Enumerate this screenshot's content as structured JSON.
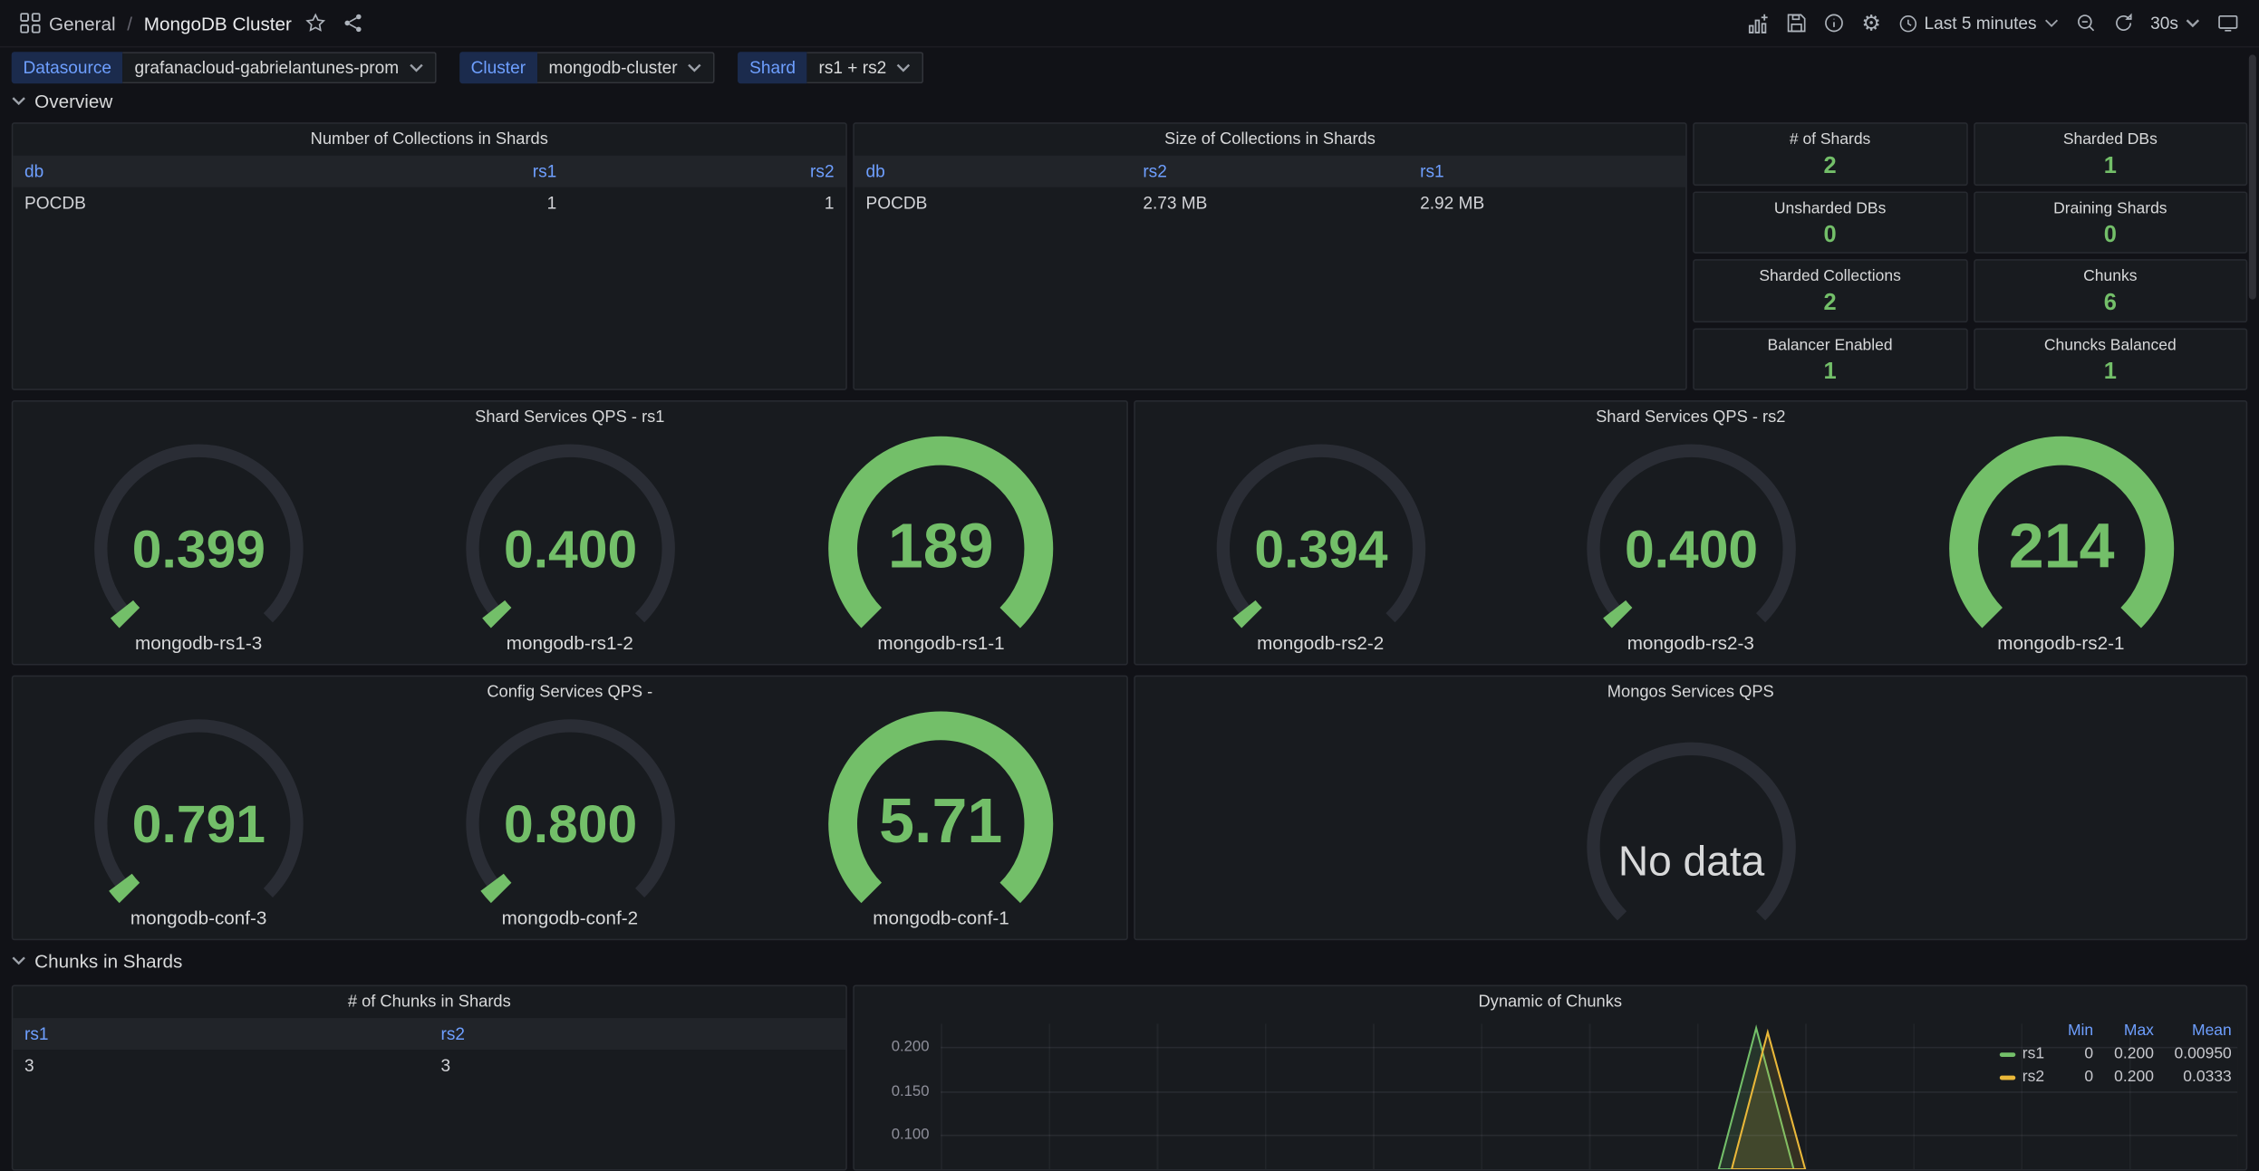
{
  "nav": {
    "breadcrumb": {
      "root": "General",
      "separator": "/",
      "current": "MongoDB Cluster"
    },
    "time_range_label": "Last 5 minutes",
    "refresh_interval_label": "30s"
  },
  "variables": [
    {
      "label": "Datasource",
      "value": "grafanacloud-gabrielantunes-prom"
    },
    {
      "label": "Cluster",
      "value": "mongodb-cluster"
    },
    {
      "label": "Shard",
      "value": "rs1 + rs2"
    }
  ],
  "sections": {
    "overview": "Overview",
    "chunks": "Chunks in Shards"
  },
  "tables": {
    "collections_count": {
      "title": "Number of Collections in Shards",
      "columns": [
        "db",
        "rs1",
        "rs2"
      ],
      "rows": [
        [
          "POCDB",
          "1",
          "1"
        ]
      ]
    },
    "collections_size": {
      "title": "Size of Collections in Shards",
      "columns": [
        "db",
        "rs2",
        "rs1"
      ],
      "rows": [
        [
          "POCDB",
          "2.73 MB",
          "2.92 MB"
        ]
      ]
    },
    "chunks_count": {
      "title": "# of Chunks in Shards",
      "columns": [
        "rs1",
        "rs2"
      ],
      "rows": [
        [
          "3",
          "3"
        ]
      ]
    }
  },
  "stats": [
    {
      "title": "# of Shards",
      "value": "2"
    },
    {
      "title": "Sharded DBs",
      "value": "1"
    },
    {
      "title": "Unsharded DBs",
      "value": "0"
    },
    {
      "title": "Draining Shards",
      "value": "0"
    },
    {
      "title": "Sharded Collections",
      "value": "2"
    },
    {
      "title": "Chunks",
      "value": "6"
    },
    {
      "title": "Balancer Enabled",
      "value": "1"
    },
    {
      "title": "Chuncks Balanced",
      "value": "1"
    }
  ],
  "gauge_panels": [
    {
      "title": "Shard Services QPS - rs1",
      "gauges": [
        {
          "value": "0.399",
          "label": "mongodb-rs1-3",
          "frac": 0.025
        },
        {
          "value": "0.400",
          "label": "mongodb-rs1-2",
          "frac": 0.025
        },
        {
          "value": "189",
          "label": "mongodb-rs1-1",
          "frac": 1
        }
      ]
    },
    {
      "title": "Shard Services QPS - rs2",
      "gauges": [
        {
          "value": "0.394",
          "label": "mongodb-rs2-2",
          "frac": 0.025
        },
        {
          "value": "0.400",
          "label": "mongodb-rs2-3",
          "frac": 0.025
        },
        {
          "value": "214",
          "label": "mongodb-rs2-1",
          "frac": 1
        }
      ]
    },
    {
      "title": "Config Services QPS -",
      "gauges": [
        {
          "value": "0.791",
          "label": "mongodb-conf-3",
          "frac": 0.03
        },
        {
          "value": "0.800",
          "label": "mongodb-conf-2",
          "frac": 0.03
        },
        {
          "value": "5.71",
          "label": "mongodb-conf-1",
          "frac": 1
        }
      ]
    }
  ],
  "mongos_panel": {
    "title": "Mongos Services QPS",
    "gauges": [
      {
        "value": "No data",
        "label": "",
        "frac": 0,
        "nodata": true
      }
    ]
  },
  "chart_data": {
    "type": "area",
    "title": "Dynamic of Chunks",
    "yticks": [
      "0.200",
      "0.150",
      "0.100"
    ],
    "ylim_visible": [
      0.08,
      0.215
    ],
    "legend_position": "top-right",
    "legend_headers": [
      "Min",
      "Max",
      "Mean"
    ],
    "series": [
      {
        "name": "rs1",
        "color": "#73bf69",
        "min": "0",
        "max": "0.200",
        "mean": "0.00950",
        "shape": "flat at 0 across the 5-minute window with one brief spike to 0.200 about two-thirds across"
      },
      {
        "name": "rs2",
        "color": "#eab839",
        "min": "0",
        "max": "0.200",
        "mean": "0.0333",
        "shape": "flat at 0 across the 5-minute window with one brief spike to 0.200 about two-thirds across"
      }
    ]
  },
  "colors": {
    "page_bg": "#111217",
    "panel_bg": "#181b1f",
    "green": "#73bf69",
    "yellow": "#eab839",
    "blue": "#6e9fff",
    "gauge_track": "#2a2d35"
  }
}
